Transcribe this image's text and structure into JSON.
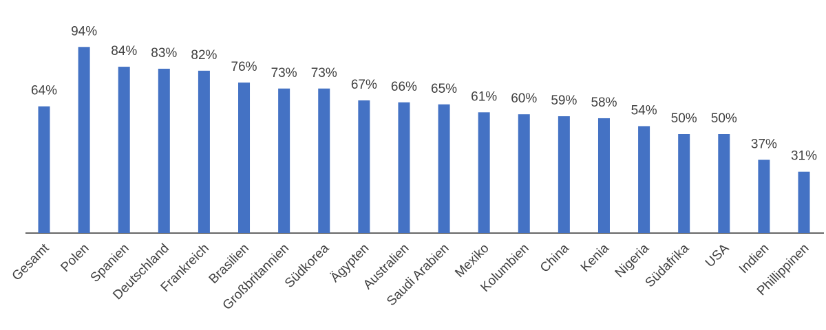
{
  "chart_data": {
    "type": "bar",
    "categories": [
      "Gesamt",
      "Polen",
      "Spanien",
      "Deutschland",
      "Frankreich",
      "Brasilien",
      "Großbritannien",
      "Südkorea",
      "Ägypten",
      "Australien",
      "Saudi Arabien",
      "Mexiko",
      "Kolumbien",
      "China",
      "Kenia",
      "Nigeria",
      "Südafrika",
      "USA",
      "Indien",
      "Phillippinen"
    ],
    "values": [
      64,
      94,
      84,
      83,
      82,
      76,
      73,
      73,
      67,
      66,
      65,
      61,
      60,
      59,
      58,
      54,
      50,
      50,
      37,
      31
    ],
    "value_labels": [
      "64%",
      "94%",
      "84%",
      "83%",
      "82%",
      "76%",
      "73%",
      "73%",
      "67%",
      "66%",
      "65%",
      "61%",
      "60%",
      "59%",
      "58%",
      "54%",
      "50%",
      "50%",
      "37%",
      "31%"
    ],
    "color": "#4472c4",
    "ylim": [
      0,
      100
    ]
  }
}
